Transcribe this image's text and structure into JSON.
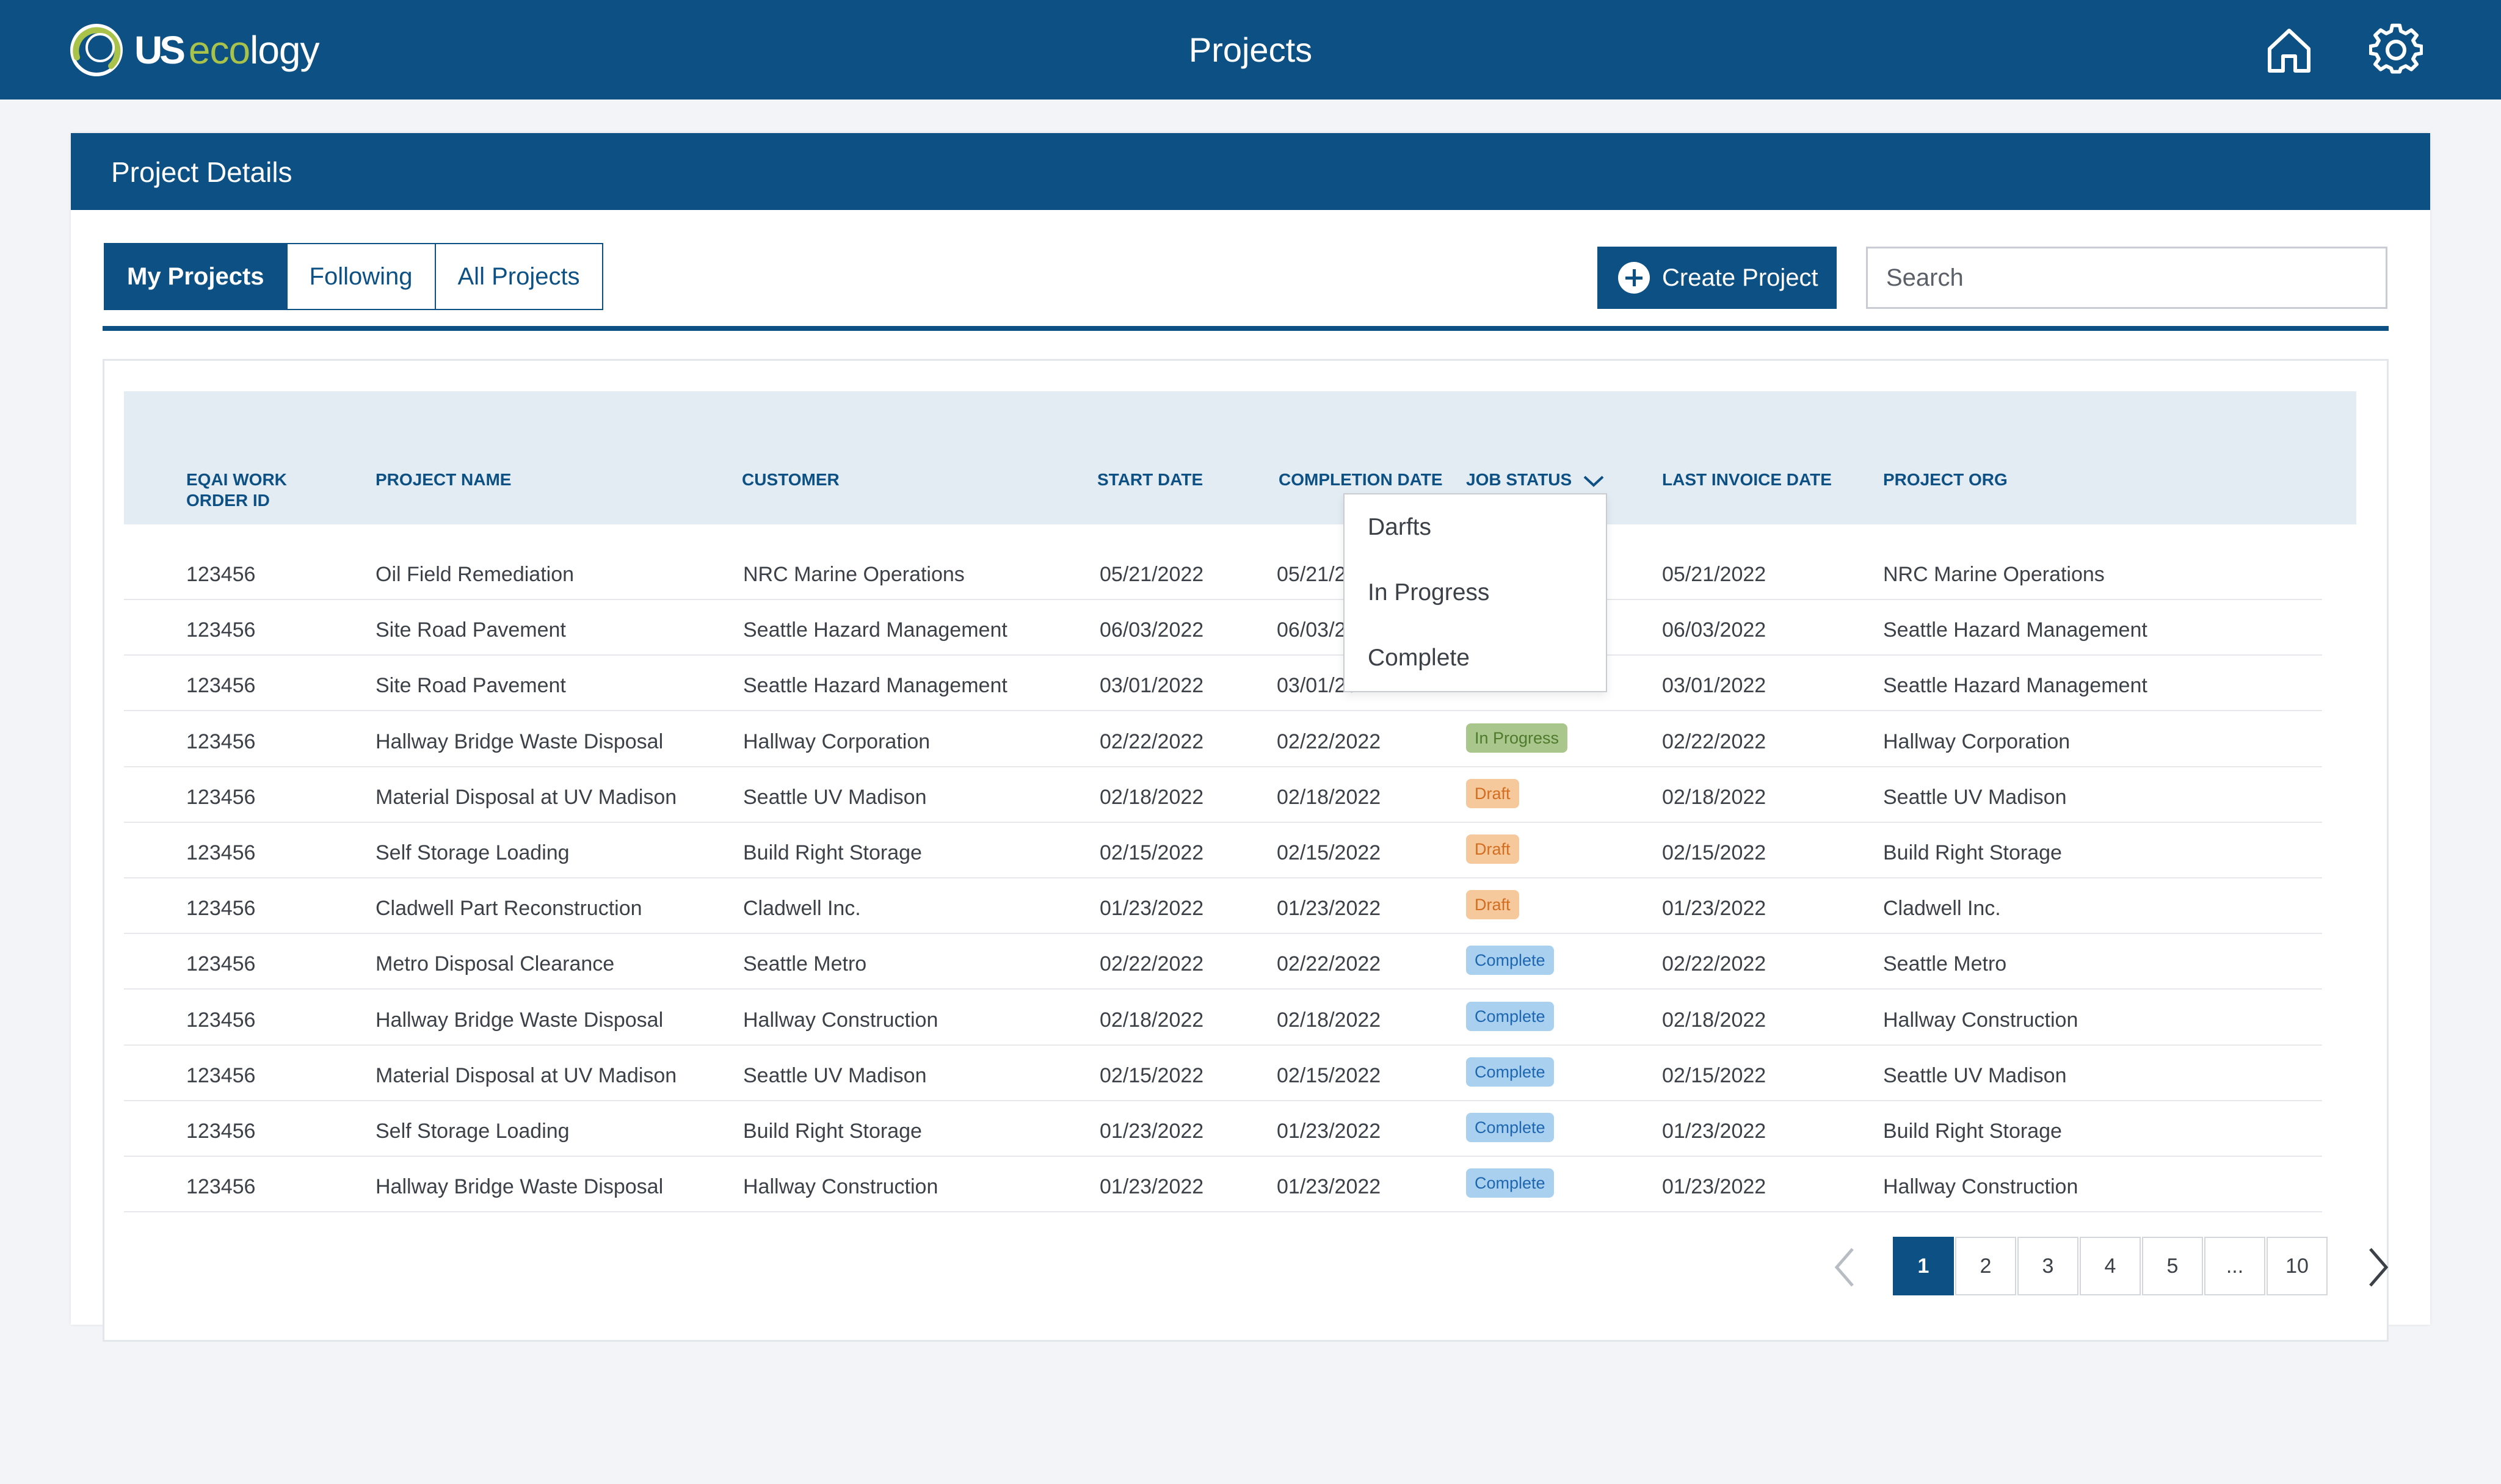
{
  "header": {
    "logo_us": "US",
    "logo_eco": "eco",
    "logo_logy": "logy",
    "title": "Projects",
    "home_icon": "home-icon",
    "settings_icon": "gear-icon"
  },
  "card": {
    "title": "Project Details",
    "tabs": [
      "My Projects",
      "Following",
      "All Projects"
    ],
    "active_tab": "My Projects",
    "create_label": "Create Project",
    "search_placeholder": "Search"
  },
  "table": {
    "columns": [
      "EQAI WORK ORDER ID",
      "PROJECT NAME",
      "CUSTOMER",
      "START DATE",
      "COMPLETION DATE",
      "JOB STATUS",
      "LAST INVOICE DATE",
      "PROJECT ORG"
    ],
    "rows": [
      {
        "id": "123456",
        "name": "Oil Field Remediation",
        "customer": "NRC Marine Operations",
        "start": "05/21/2022",
        "completion": "05/21/2022",
        "status": "",
        "invoice": "05/21/2022",
        "org": "NRC Marine Operations"
      },
      {
        "id": "123456",
        "name": "Site Road Pavement",
        "customer": "Seattle Hazard Management",
        "start": "06/03/2022",
        "completion": "06/03/2022",
        "status": "",
        "invoice": "06/03/2022",
        "org": "Seattle Hazard Management"
      },
      {
        "id": "123456",
        "name": "Site Road Pavement",
        "customer": "Seattle Hazard Management",
        "start": "03/01/2022",
        "completion": "03/01/2022",
        "status": "",
        "invoice": "03/01/2022",
        "org": "Seattle Hazard Management"
      },
      {
        "id": "123456",
        "name": "Hallway Bridge Waste Disposal",
        "customer": "Hallway Corporation",
        "start": "02/22/2022",
        "completion": "02/22/2022",
        "status": "In Progress",
        "invoice": "02/22/2022",
        "org": "Hallway Corporation"
      },
      {
        "id": "123456",
        "name": "Material Disposal at UV Madison",
        "customer": "Seattle UV Madison",
        "start": "02/18/2022",
        "completion": "02/18/2022",
        "status": "Draft",
        "invoice": "02/18/2022",
        "org": "Seattle UV Madison"
      },
      {
        "id": "123456",
        "name": "Self Storage Loading",
        "customer": "Build Right Storage",
        "start": "02/15/2022",
        "completion": "02/15/2022",
        "status": "Draft",
        "invoice": "02/15/2022",
        "org": "Build Right Storage"
      },
      {
        "id": "123456",
        "name": "Cladwell Part Reconstruction",
        "customer": "Cladwell Inc.",
        "start": "01/23/2022",
        "completion": "01/23/2022",
        "status": "Draft",
        "invoice": "01/23/2022",
        "org": "Cladwell Inc."
      },
      {
        "id": "123456",
        "name": "Metro Disposal Clearance",
        "customer": "Seattle Metro",
        "start": "02/22/2022",
        "completion": "02/22/2022",
        "status": "Complete",
        "invoice": "02/22/2022",
        "org": "Seattle Metro"
      },
      {
        "id": "123456",
        "name": "Hallway Bridge Waste Disposal",
        "customer": "Hallway Construction",
        "start": "02/18/2022",
        "completion": "02/18/2022",
        "status": "Complete",
        "invoice": "02/18/2022",
        "org": "Hallway Construction"
      },
      {
        "id": "123456",
        "name": "Material Disposal at UV Madison",
        "customer": "Seattle UV Madison",
        "start": "02/15/2022",
        "completion": "02/15/2022",
        "status": "Complete",
        "invoice": "02/15/2022",
        "org": "Seattle UV Madison"
      },
      {
        "id": "123456",
        "name": "Self Storage Loading",
        "customer": "Build Right Storage",
        "start": "01/23/2022",
        "completion": "01/23/2022",
        "status": "Complete",
        "invoice": "01/23/2022",
        "org": "Build Right Storage"
      },
      {
        "id": "123456",
        "name": "Hallway Bridge Waste Disposal",
        "customer": "Hallway Construction",
        "start": "01/23/2022",
        "completion": "01/23/2022",
        "status": "Complete",
        "invoice": "01/23/2022",
        "org": "Hallway Construction"
      }
    ]
  },
  "status_dropdown": {
    "open": true,
    "options": [
      "Darfts",
      "In Progress",
      "Complete"
    ]
  },
  "pagination": {
    "pages": [
      "1",
      "2",
      "3",
      "4",
      "5",
      "...",
      "10"
    ],
    "current": "1",
    "prev_icon": "chevron-left-icon",
    "next_icon": "chevron-right-icon"
  },
  "colors": {
    "brand_blue": "#0d5184",
    "logo_green": "#a9c34a",
    "header_row": "#e3ebf3",
    "badge_in_progress": "#a9c68c",
    "badge_draft": "#f6c99c",
    "badge_complete": "#a9d0ee"
  }
}
